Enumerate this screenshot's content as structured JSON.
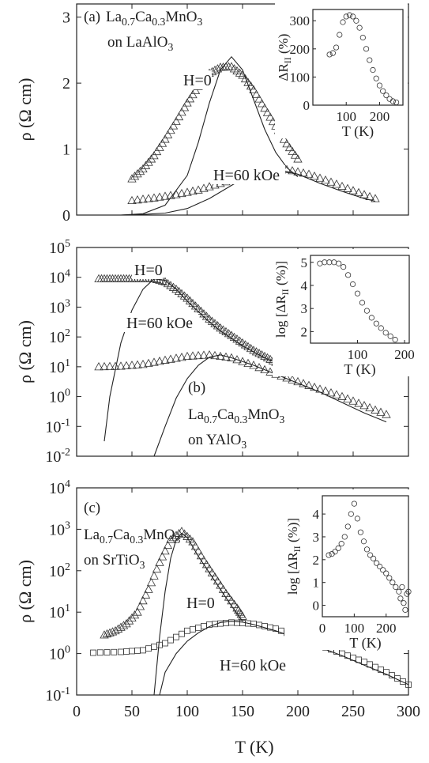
{
  "figure": {
    "x_axis_label": "T (K)",
    "x_ticks": [
      "0",
      "50",
      "100",
      "150",
      "200",
      "250",
      "300"
    ]
  },
  "chart_data": [
    {
      "type": "scatter",
      "panel": "(a)",
      "sample_lines": [
        "La0.7Ca0.3MnO3",
        "on LaAlO3"
      ],
      "ylabel": "ρ (Ω cm)",
      "xlim": [
        0,
        300
      ],
      "ylim": [
        0,
        3.2
      ],
      "yscale": "linear",
      "y_ticks": [
        "0",
        "1",
        "2",
        "3"
      ],
      "series": [
        {
          "name": "H=0",
          "marker": "triangle",
          "x": [
            50,
            60,
            70,
            80,
            90,
            100,
            110,
            120,
            130,
            140,
            150,
            160,
            170,
            180,
            190,
            200
          ],
          "y": [
            0.55,
            0.7,
            0.9,
            1.15,
            1.42,
            1.7,
            1.95,
            2.15,
            2.24,
            2.25,
            2.12,
            1.9,
            1.62,
            1.35,
            1.08,
            0.85
          ],
          "fit_x": [
            40,
            60,
            80,
            100,
            110,
            120,
            130,
            140,
            150,
            160,
            170,
            180,
            190,
            200
          ],
          "fit_y": [
            0.0,
            0.02,
            0.15,
            0.6,
            1.1,
            1.7,
            2.2,
            2.4,
            2.2,
            1.75,
            1.3,
            0.95,
            0.72,
            0.58
          ]
        },
        {
          "name": "H=60 kOe",
          "marker": "triangle",
          "x": [
            50,
            70,
            90,
            110,
            130,
            150,
            170,
            190,
            210,
            230,
            250,
            270
          ],
          "y": [
            0.22,
            0.26,
            0.31,
            0.38,
            0.48,
            0.58,
            0.66,
            0.69,
            0.62,
            0.5,
            0.37,
            0.25
          ],
          "fit_x": [
            40,
            60,
            80,
            100,
            120,
            140,
            160,
            170,
            180,
            200,
            220,
            240,
            260,
            270
          ],
          "fit_y": [
            0.0,
            0.01,
            0.03,
            0.1,
            0.25,
            0.45,
            0.64,
            0.7,
            0.7,
            0.62,
            0.48,
            0.36,
            0.25,
            0.21
          ]
        }
      ],
      "labels": [
        "H=0",
        "H=60 kOe"
      ],
      "inset": {
        "ylabel": "ΔR",
        "ylabel_sub": "II",
        "ylabel_unit": "(%)",
        "xlabel": "T (K)",
        "x_ticks": [
          "100",
          "200"
        ],
        "y_ticks": [
          "0",
          "100",
          "200",
          "300"
        ],
        "xlim": [
          0,
          270
        ],
        "ylim": [
          0,
          340
        ],
        "x": [
          50,
          60,
          70,
          80,
          90,
          100,
          110,
          120,
          130,
          140,
          150,
          160,
          170,
          180,
          190,
          200,
          210,
          220,
          230,
          240,
          250
        ],
        "y": [
          180,
          185,
          205,
          250,
          295,
          315,
          320,
          315,
          300,
          275,
          240,
          200,
          160,
          125,
          95,
          70,
          50,
          35,
          22,
          14,
          10
        ]
      }
    },
    {
      "type": "scatter",
      "panel": "(b)",
      "sample_lines": [
        "La0.7Ca0.3MnO3",
        "on YAlO3"
      ],
      "ylabel": "ρ (Ω cm)",
      "xlim": [
        0,
        300
      ],
      "ylim": [
        -2,
        5
      ],
      "yscale": "log",
      "y_ticks": [
        "10-2",
        "10-1",
        "100",
        "101",
        "102",
        "103",
        "104",
        "105"
      ],
      "series": [
        {
          "name": "H=0",
          "marker": "triangle",
          "x": [
            20,
            30,
            40,
            50,
            60,
            70,
            80,
            90,
            100,
            110,
            120,
            130,
            140,
            150,
            160,
            170,
            180
          ],
          "y": [
            3.95,
            3.95,
            3.95,
            3.95,
            3.96,
            3.95,
            3.85,
            3.6,
            3.3,
            2.95,
            2.6,
            2.3,
            2.05,
            1.8,
            1.55,
            1.35,
            1.15
          ],
          "fit_x": [
            25,
            30,
            40,
            50,
            60,
            70,
            80,
            90,
            100,
            110,
            120,
            130,
            140,
            150,
            160,
            170,
            180
          ],
          "fit_y": [
            -1.5,
            0.0,
            1.8,
            2.9,
            3.6,
            3.95,
            3.9,
            3.6,
            3.2,
            2.85,
            2.5,
            2.2,
            1.95,
            1.7,
            1.5,
            1.3,
            1.15
          ]
        },
        {
          "name": "H=60 kOe",
          "marker": "triangle",
          "x": [
            20,
            40,
            60,
            80,
            100,
            120,
            140,
            160,
            180,
            200,
            220,
            240,
            260,
            280
          ],
          "y": [
            1.0,
            1.02,
            1.08,
            1.22,
            1.35,
            1.4,
            1.3,
            1.05,
            0.75,
            0.5,
            0.25,
            0.0,
            -0.3,
            -0.6
          ],
          "fit_x": [
            70,
            80,
            90,
            100,
            110,
            120,
            130,
            140,
            160,
            180,
            200,
            220,
            240,
            260,
            280
          ],
          "fit_y": [
            -2.0,
            -1.0,
            -0.05,
            0.6,
            1.05,
            1.32,
            1.4,
            1.3,
            1.05,
            0.75,
            0.45,
            0.15,
            -0.2,
            -0.55,
            -0.85
          ]
        }
      ],
      "labels": [
        "H=0",
        "H=60 kOe"
      ],
      "inset": {
        "ylabel": "log [ΔR",
        "ylabel_sub": "II",
        "ylabel_unit": "(%)]",
        "xlabel": "T (K)",
        "x_ticks": [
          "100",
          "200"
        ],
        "y_ticks": [
          "2",
          "3",
          "4",
          "5"
        ],
        "xlim": [
          0,
          210
        ],
        "ylim": [
          1.5,
          5.3
        ],
        "x": [
          20,
          30,
          40,
          50,
          60,
          70,
          80,
          90,
          100,
          110,
          120,
          130,
          140,
          150,
          160,
          170,
          180
        ],
        "y": [
          4.95,
          5.0,
          5.0,
          5.0,
          4.95,
          4.8,
          4.45,
          4.05,
          3.65,
          3.25,
          2.9,
          2.6,
          2.35,
          2.15,
          1.95,
          1.8,
          1.65
        ]
      }
    },
    {
      "type": "scatter",
      "panel": "(c)",
      "sample_lines": [
        "La0.7Ca0.3MnO3",
        "on SrTiO3"
      ],
      "ylabel": "ρ (Ω cm)",
      "xlim": [
        0,
        300
      ],
      "ylim": [
        -1,
        4
      ],
      "yscale": "log",
      "y_ticks": [
        "10-1",
        "100",
        "101",
        "102",
        "103",
        "104"
      ],
      "series": [
        {
          "name": "H=0",
          "marker": "triangle",
          "x": [
            25,
            35,
            45,
            55,
            65,
            75,
            85,
            95,
            105,
            115,
            125,
            135,
            145,
            150
          ],
          "y": [
            0.45,
            0.55,
            0.72,
            1.0,
            1.55,
            2.2,
            2.75,
            2.95,
            2.7,
            2.25,
            1.85,
            1.45,
            1.1,
            0.9
          ],
          "fit_x": [
            70,
            75,
            80,
            85,
            90,
            95,
            100,
            110,
            120,
            130,
            140,
            150
          ],
          "fit_y": [
            -1.0,
            0.4,
            1.5,
            2.3,
            2.75,
            2.9,
            2.8,
            2.35,
            1.95,
            1.55,
            1.15,
            0.78
          ]
        },
        {
          "name": "H=60 kOe",
          "marker": "square",
          "x": [
            15,
            40,
            60,
            80,
            100,
            120,
            140,
            160,
            180,
            200,
            220,
            240,
            260,
            280,
            300
          ],
          "y": [
            0.02,
            0.04,
            0.08,
            0.25,
            0.55,
            0.7,
            0.75,
            0.72,
            0.6,
            0.4,
            0.2,
            0.0,
            -0.2,
            -0.45,
            -0.75
          ],
          "fit_x": [
            75,
            80,
            90,
            100,
            110,
            120,
            130,
            140,
            150,
            160,
            180,
            200,
            220,
            240,
            260,
            280,
            300
          ],
          "fit_y": [
            -1.0,
            -0.45,
            0.0,
            0.3,
            0.5,
            0.65,
            0.75,
            0.78,
            0.76,
            0.7,
            0.55,
            0.36,
            0.15,
            -0.05,
            -0.28,
            -0.5,
            -0.75
          ]
        }
      ],
      "labels": [
        "H=0",
        "H=60 kOe"
      ],
      "inset": {
        "ylabel": "log [ΔR",
        "ylabel_sub": "II",
        "ylabel_unit": "(%)]",
        "xlabel": "T (K)",
        "x_ticks": [
          "0",
          "100",
          "200"
        ],
        "y_ticks": [
          "0",
          "1",
          "2",
          "3",
          "4"
        ],
        "xlim": [
          0,
          270
        ],
        "ylim": [
          -0.5,
          4.8
        ],
        "x": [
          20,
          30,
          40,
          50,
          60,
          70,
          80,
          90,
          100,
          110,
          120,
          130,
          140,
          150,
          160,
          170,
          180,
          190,
          200,
          210,
          220,
          230,
          240,
          245,
          250,
          255,
          260,
          265,
          270
        ],
        "y": [
          2.2,
          2.25,
          2.35,
          2.5,
          2.7,
          3.0,
          3.45,
          4.0,
          4.45,
          3.8,
          3.2,
          2.8,
          2.45,
          2.2,
          2.05,
          1.85,
          1.7,
          1.55,
          1.4,
          1.2,
          1.0,
          0.8,
          0.6,
          0.3,
          0.8,
          0.1,
          -0.2,
          0.5,
          0.6
        ]
      }
    }
  ]
}
